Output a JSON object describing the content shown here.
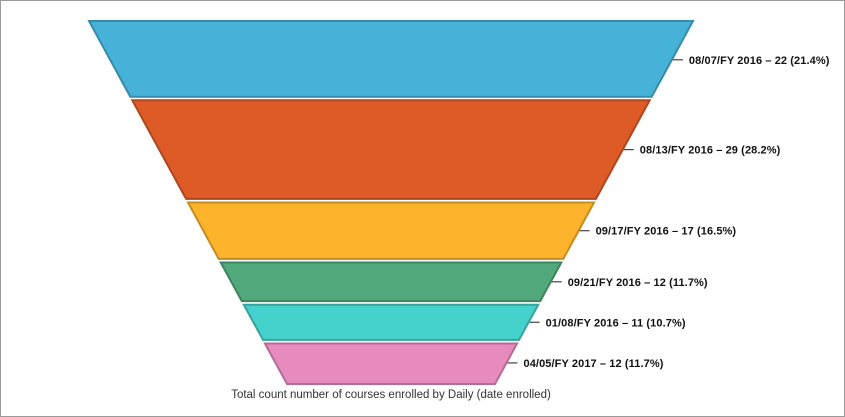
{
  "chart_data": {
    "type": "funnel",
    "title": "Total count number of courses enrolled by Daily (date enrolled)",
    "categories": [
      "08/07/FY 2016",
      "08/13/FY 2016",
      "09/17/FY 2016",
      "09/21/FY 2016",
      "01/08/FY 2016",
      "04/05/FY 2017"
    ],
    "values": [
      22,
      29,
      17,
      12,
      11,
      12
    ],
    "percent_labels": [
      "21.4%",
      "28.2%",
      "16.5%",
      "11.7%",
      "10.7%",
      "11.7%"
    ],
    "labels": [
      "08/07/FY 2016 – 22 (21.4%)",
      "08/13/FY 2016 – 29 (28.2%)",
      "09/17/FY 2016 – 17 (16.5%)",
      "09/21/FY 2016 – 12 (11.7%)",
      "01/08/FY 2016 – 11 (10.7%)",
      "04/05/FY 2017 – 12 (11.7%)"
    ],
    "colors": [
      "#47b2d8",
      "#de5b27",
      "#fdb32b",
      "#51a87a",
      "#45d1cc",
      "#e78abe"
    ],
    "legend": "none",
    "orientation": "wide-top tapering down",
    "label_position": "right of each slice with tick line",
    "slice_gap_color": "#ffffff"
  },
  "frame": {
    "background": "#ffffff",
    "border_color": "#9a9a9a"
  }
}
